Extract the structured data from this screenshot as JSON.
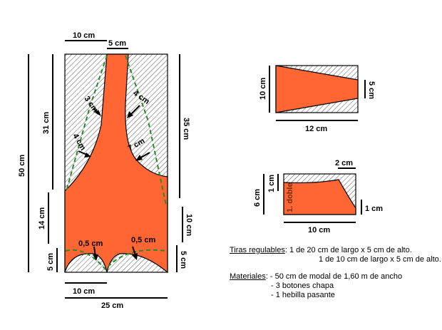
{
  "colors": {
    "fill": "#ff6633",
    "hatch": "#000000",
    "seam": "#2a8a2a"
  },
  "pattern_main": {
    "dim_top_10": "10 cm",
    "dim_top_5": "5 cm",
    "dim_left_50": "50 cm",
    "dim_left_31": "31 cm",
    "dim_left_14": "14 cm",
    "dim_left_5": "5 cm",
    "dim_right_35": "35 cm",
    "dim_right_10": "10 cm",
    "dim_right_5": "5 cm",
    "dim_bottom_10": "10 cm",
    "dim_bottom_25": "25 cm",
    "label_3cm": "3 cm",
    "label_4cm_left": "4 cm",
    "label_4cm_right": "4 cm",
    "label_7cm": "7 cm",
    "label_05_left": "0,5 cm",
    "label_05_right": "0,5 cm"
  },
  "pattern_trapezoid": {
    "dim_height": "10 cm",
    "dim_right": "5 cm",
    "dim_width": "12 cm"
  },
  "pattern_small": {
    "dim_top": "2 cm",
    "dim_left_outer": "6 cm",
    "dim_left_inner": "1 cm",
    "fold_label": "1. doble",
    "dim_right": "1 cm",
    "dim_width": "10 cm"
  },
  "notes": {
    "tiras_title": "Tiras regulables",
    "tiras_line1": ": 1 de 20 cm de largo x 5 cm de alto.",
    "tiras_line2": "1 de 10 cm de largo x 5 cm de alto.",
    "materiales_title": "Materiales",
    "materiales_line1": ": - 50 cm de modal de 1,60 m de ancho",
    "materiales_line2": "-  3 botones chapa",
    "materiales_line3": "-  1 hebilla pasante"
  }
}
